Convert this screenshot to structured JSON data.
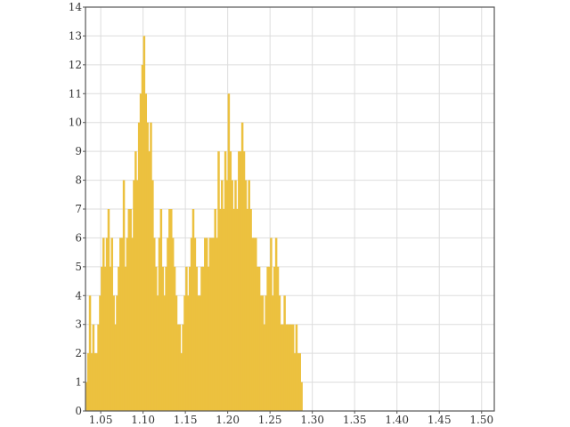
{
  "chart_data": {
    "type": "bar",
    "subtype": "histogram",
    "title": "",
    "xlabel": "",
    "ylabel": "",
    "xlim": [
      1.032,
      1.515
    ],
    "ylim": [
      0,
      14
    ],
    "x_ticks": [
      1.05,
      1.1,
      1.15,
      1.2,
      1.25,
      1.3,
      1.35,
      1.4,
      1.45,
      1.5
    ],
    "x_tick_labels": [
      "1.05",
      "1.10",
      "1.15",
      "1.20",
      "1.25",
      "1.30",
      "1.35",
      "1.40",
      "1.45",
      "1.50"
    ],
    "y_ticks": [
      0,
      1,
      2,
      3,
      4,
      5,
      6,
      7,
      8,
      9,
      10,
      11,
      12,
      13,
      14
    ],
    "y_tick_labels": [
      "0",
      "1",
      "2",
      "3",
      "4",
      "5",
      "6",
      "7",
      "8",
      "9",
      "10",
      "11",
      "12",
      "13",
      "14"
    ],
    "grid": true,
    "legend": "none",
    "bar_color": "#ecc13f",
    "bin_start": 1.032,
    "bin_width": 0.002,
    "values": [
      1,
      2,
      4,
      2,
      3,
      2,
      2,
      3,
      4,
      5,
      6,
      5,
      6,
      7,
      5,
      6,
      4,
      3,
      4,
      5,
      6,
      6,
      8,
      5,
      6,
      7,
      7,
      6,
      8,
      9,
      8,
      10,
      11,
      12,
      13,
      11,
      10,
      9,
      10,
      8,
      6,
      5,
      4,
      6,
      7,
      5,
      4,
      5,
      6,
      7,
      7,
      6,
      5,
      4,
      3,
      3,
      2,
      3,
      4,
      5,
      4,
      5,
      6,
      7,
      6,
      5,
      4,
      4,
      5,
      5,
      6,
      6,
      5,
      6,
      6,
      6,
      7,
      6,
      9,
      7,
      8,
      7,
      9,
      8,
      11,
      9,
      8,
      7,
      8,
      7,
      9,
      9,
      10,
      9,
      8,
      7,
      8,
      7,
      6,
      6,
      6,
      5,
      5,
      4,
      4,
      3,
      4,
      5,
      5,
      6,
      4,
      5,
      6,
      5,
      4,
      3,
      3,
      4,
      3,
      3,
      3,
      3,
      3,
      2,
      3,
      2,
      2,
      1
    ]
  }
}
